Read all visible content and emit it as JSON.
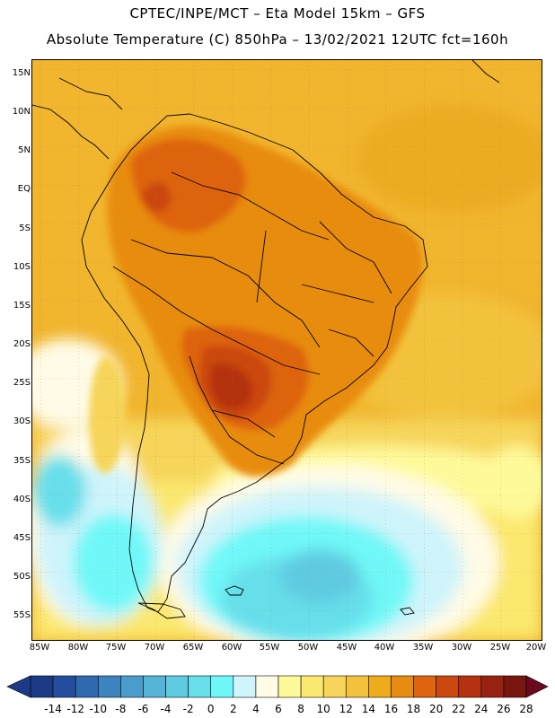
{
  "header": {
    "line1": "CPTEC/INPE/MCT –  Eta Model 15km – GFS",
    "line2": "Absolute Temperature (C) 850hPa – 13/02/2021 12UTC fct=160h"
  },
  "map": {
    "lat_labels": [
      "15N",
      "10N",
      "5N",
      "EQ",
      "5S",
      "10S",
      "15S",
      "20S",
      "25S",
      "30S",
      "35S",
      "40S",
      "45S",
      "50S",
      "55S"
    ],
    "lon_labels": [
      "85W",
      "80W",
      "75W",
      "70W",
      "65W",
      "60W",
      "55W",
      "50W",
      "45W",
      "40W",
      "35W",
      "30W",
      "25W",
      "20W"
    ]
  },
  "colorbar": {
    "labels": [
      "-14",
      "-12",
      "-10",
      "-8",
      "-6",
      "-4",
      "-2",
      "0",
      "2",
      "4",
      "6",
      "8",
      "10",
      "12",
      "14",
      "16",
      "18",
      "20",
      "22",
      "24",
      "26",
      "28"
    ],
    "colors": [
      "#1c3a86",
      "#244f9e",
      "#2f6ab0",
      "#3d84bf",
      "#4a9dcb",
      "#55b5d6",
      "#5fcbe0",
      "#66dfea",
      "#6ff8f8",
      "#cff4fb",
      "#fffbe6",
      "#fefa9a",
      "#fbe86e",
      "#f6d55a",
      "#f3c23c",
      "#eeac1a",
      "#e88c10",
      "#de6410",
      "#cb4710",
      "#b4320f",
      "#982212",
      "#7a1610"
    ]
  }
}
